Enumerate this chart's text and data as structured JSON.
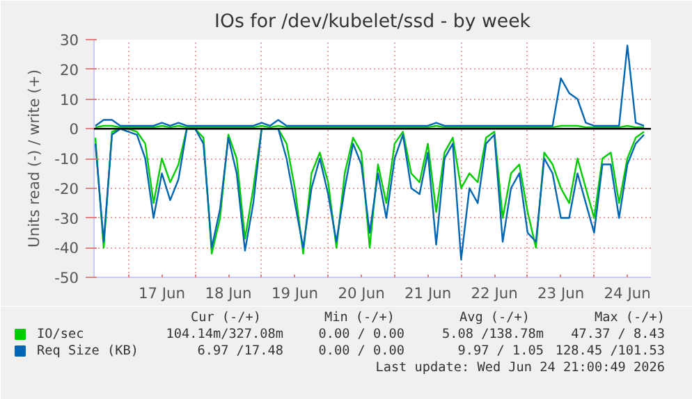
{
  "chart_data": {
    "type": "line",
    "title": "IOs for /dev/kubelet/ssd - by week",
    "ylabel": "Units read (-) / write (+)",
    "x": [
      "2026-06-16T12:00",
      "2026-06-16T15:00",
      "2026-06-16T18:00",
      "2026-06-16T21:00",
      "2026-06-17T00:00",
      "2026-06-17T03:00",
      "2026-06-17T06:00",
      "2026-06-17T09:00",
      "2026-06-17T12:00",
      "2026-06-17T15:00",
      "2026-06-17T18:00",
      "2026-06-17T21:00",
      "2026-06-18T00:00",
      "2026-06-18T03:00",
      "2026-06-18T06:00",
      "2026-06-18T09:00",
      "2026-06-18T12:00",
      "2026-06-18T15:00",
      "2026-06-18T18:00",
      "2026-06-18T21:00",
      "2026-06-19T00:00",
      "2026-06-19T03:00",
      "2026-06-19T06:00",
      "2026-06-19T09:00",
      "2026-06-19T12:00",
      "2026-06-19T15:00",
      "2026-06-19T18:00",
      "2026-06-19T21:00",
      "2026-06-20T00:00",
      "2026-06-20T03:00",
      "2026-06-20T06:00",
      "2026-06-20T09:00",
      "2026-06-20T12:00",
      "2026-06-20T15:00",
      "2026-06-20T18:00",
      "2026-06-20T21:00",
      "2026-06-21T00:00",
      "2026-06-21T03:00",
      "2026-06-21T06:00",
      "2026-06-21T09:00",
      "2026-06-21T12:00",
      "2026-06-21T15:00",
      "2026-06-21T18:00",
      "2026-06-21T21:00",
      "2026-06-22T00:00",
      "2026-06-22T03:00",
      "2026-06-22T06:00",
      "2026-06-22T09:00",
      "2026-06-22T12:00",
      "2026-06-22T15:00",
      "2026-06-22T18:00",
      "2026-06-22T21:00",
      "2026-06-23T00:00",
      "2026-06-23T03:00",
      "2026-06-23T06:00",
      "2026-06-23T09:00",
      "2026-06-23T12:00",
      "2026-06-23T15:00",
      "2026-06-23T18:00",
      "2026-06-23T21:00",
      "2026-06-24T00:00",
      "2026-06-24T03:00",
      "2026-06-24T06:00",
      "2026-06-24T09:00",
      "2026-06-24T12:00",
      "2026-06-24T15:00",
      "2026-06-24T18:00"
    ],
    "series": [
      {
        "name": "IO/sec",
        "color": "#00cc00",
        "values": [
          -3,
          -40,
          -1,
          0,
          0,
          -1,
          -5,
          -25,
          -10,
          -18,
          -12,
          0,
          0,
          -3,
          -42,
          -30,
          -2,
          -10,
          -37,
          -20,
          0,
          0,
          0,
          -5,
          -20,
          -42,
          -15,
          -8,
          -18,
          -40,
          -15,
          -3,
          -8,
          -40,
          -12,
          -25,
          -5,
          -1,
          -15,
          -18,
          -5,
          -28,
          -8,
          -3,
          -20,
          -15,
          -18,
          -3,
          -1,
          -30,
          -15,
          -12,
          -28,
          -40,
          -8,
          -12,
          -20,
          -25,
          -10,
          -20,
          -30,
          -10,
          -8,
          -25,
          -10,
          -3,
          -1
        ]
      },
      {
        "color": "#00cc00",
        "values": [
          0.5,
          1,
          1,
          0.5,
          0.5,
          0.5,
          0.5,
          0.5,
          1,
          0.5,
          1,
          0.5,
          0.5,
          0.5,
          0.5,
          0.5,
          0.5,
          0.5,
          0.5,
          0.5,
          1,
          0.5,
          1,
          0.5,
          0.5,
          0.5,
          0.5,
          0.5,
          0.5,
          0.5,
          0.5,
          0.5,
          0.5,
          0.5,
          0.5,
          0.5,
          0.5,
          0.5,
          0.5,
          0.5,
          0.5,
          1,
          0.5,
          0.5,
          0.5,
          0.5,
          0.5,
          0.5,
          0.5,
          0.5,
          0.5,
          0.5,
          0.5,
          0.5,
          0.5,
          0.5,
          1,
          1,
          1,
          0.5,
          0.5,
          0.5,
          0.5,
          0.5,
          1,
          0.5,
          0.5
        ]
      },
      {
        "name": "Req Size (KB)",
        "color": "#0066b3",
        "values": [
          -5,
          -38,
          -2,
          0,
          -1,
          -2,
          -10,
          -30,
          -15,
          -24,
          -17,
          0,
          0,
          -5,
          -40,
          -27,
          -3,
          -15,
          -41,
          -25,
          0,
          0,
          0,
          -10,
          -25,
          -40,
          -20,
          -10,
          -22,
          -38,
          -20,
          -5,
          -12,
          -35,
          -15,
          -30,
          -10,
          -2,
          -20,
          -22,
          -8,
          -39,
          -10,
          -5,
          -44,
          -20,
          -25,
          -5,
          -2,
          -38,
          -20,
          -15,
          -35,
          -38,
          -10,
          -15,
          -30,
          -30,
          -15,
          -25,
          -35,
          -12,
          -12,
          -30,
          -12,
          -5,
          -2
        ]
      },
      {
        "color": "#0066b3",
        "values": [
          1,
          3,
          3,
          1,
          1,
          1,
          1,
          1,
          2,
          1,
          2,
          1,
          1,
          1,
          1,
          1,
          1,
          1,
          1,
          1,
          2,
          1,
          3,
          1,
          1,
          1,
          1,
          1,
          1,
          1,
          1,
          1,
          1,
          1,
          1,
          1,
          1,
          1,
          1,
          1,
          1,
          2,
          1,
          1,
          1,
          1,
          1,
          1,
          1,
          1,
          1,
          1,
          1,
          1,
          1,
          1,
          17,
          12,
          10,
          2,
          1,
          1,
          1,
          1,
          28,
          2,
          1
        ]
      }
    ],
    "xlim": [
      "2026-06-16T11:30",
      "2026-06-24T20:30"
    ],
    "xticks": [
      {
        "value": "2026-06-17T00:00",
        "label": null
      },
      {
        "value": "2026-06-17T12:00",
        "label": "17 Jun"
      },
      {
        "value": "2026-06-18T00:00",
        "label": null
      },
      {
        "value": "2026-06-18T12:00",
        "label": "18 Jun"
      },
      {
        "value": "2026-06-19T00:00",
        "label": null
      },
      {
        "value": "2026-06-19T12:00",
        "label": "19 Jun"
      },
      {
        "value": "2026-06-20T00:00",
        "label": null
      },
      {
        "value": "2026-06-20T12:00",
        "label": "20 Jun"
      },
      {
        "value": "2026-06-21T00:00",
        "label": null
      },
      {
        "value": "2026-06-21T12:00",
        "label": "21 Jun"
      },
      {
        "value": "2026-06-22T00:00",
        "label": null
      },
      {
        "value": "2026-06-22T12:00",
        "label": "22 Jun"
      },
      {
        "value": "2026-06-23T00:00",
        "label": null
      },
      {
        "value": "2026-06-23T12:00",
        "label": "23 Jun"
      },
      {
        "value": "2026-06-24T00:00",
        "label": null
      },
      {
        "value": "2026-06-24T12:00",
        "label": "24 Jun"
      }
    ],
    "ylim": [
      -50,
      30
    ],
    "yticks": [
      -50,
      -40,
      -30,
      -20,
      -10,
      0,
      10,
      20,
      30
    ],
    "ref_lines": [
      {
        "axis": "y",
        "value": 0,
        "color": "#000000"
      }
    ],
    "grid": true,
    "legend": "bottom",
    "annotations": [
      "Cur (-/+)",
      "Min (-/+)",
      "Avg (-/+)",
      "Max (-/+)",
      "104.14m/327.08m",
      "0.00 / 0.00",
      "5.08 /138.78m",
      "47.37 / 8.43",
      "6.97 /17.48",
      "0.00 / 0.00",
      "9.97 / 1.05",
      "128.45 /101.53",
      "Last update: Wed Jun 24 21:00:49 2026"
    ]
  }
}
